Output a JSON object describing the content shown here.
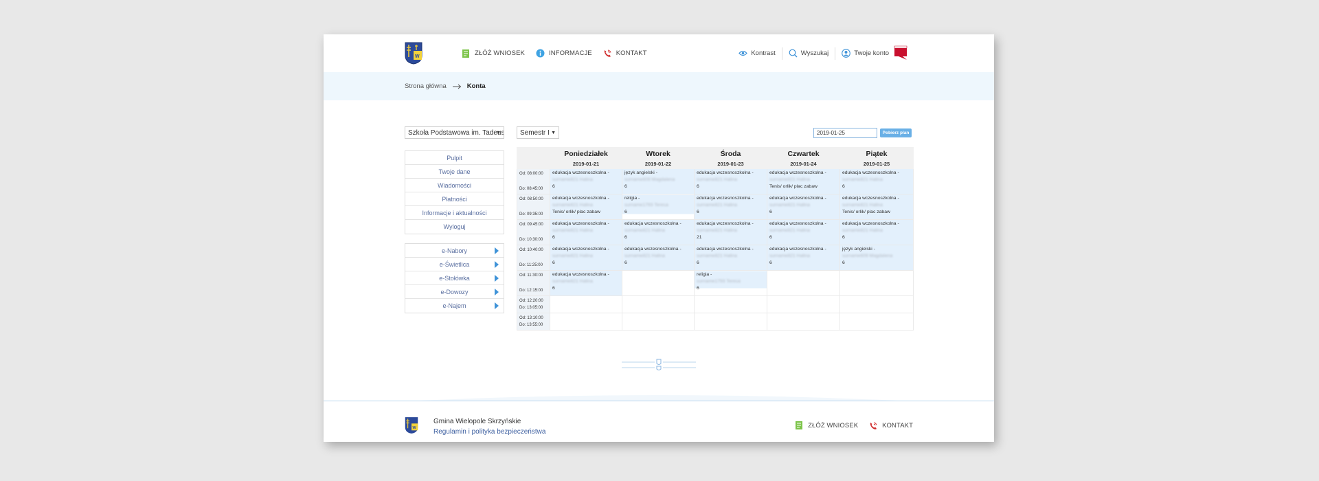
{
  "header": {
    "nav": [
      {
        "label": "ZŁÓŻ WNIOSEK",
        "icon": "document-plus-icon"
      },
      {
        "label": "INFORMACJE",
        "icon": "info-icon"
      },
      {
        "label": "KONTAKT",
        "icon": "phone-icon"
      }
    ],
    "right": [
      {
        "label": "Kontrast",
        "icon": "eye-icon"
      },
      {
        "label": "Wyszukaj",
        "icon": "search-icon"
      },
      {
        "label": "Twoje konto",
        "icon": "user-icon"
      }
    ],
    "bip_label": "bip"
  },
  "breadcrumb": {
    "home": "Strona główna",
    "current": "Konta"
  },
  "school_select": "Szkoła Podstawowa im. Tadeusza",
  "semester_select": "Semestr I",
  "date_value": "2019-01-25",
  "fetch_button": "Pobierz plan",
  "menu": [
    "Pulpit",
    "Twoje dane",
    "Wiadomości",
    "Płatności",
    "Informacje i aktualności",
    "Wyloguj"
  ],
  "modules": [
    "e-Nabory",
    "e-Świetlica",
    "e-Stołówka",
    "e-Dowozy",
    "e-Najem"
  ],
  "timetable": {
    "days": [
      {
        "name": "Poniedziałek",
        "date": "2019-01-21"
      },
      {
        "name": "Wtorek",
        "date": "2019-01-22"
      },
      {
        "name": "Środa",
        "date": "2019-01-23"
      },
      {
        "name": "Czwartek",
        "date": "2019-01-24"
      },
      {
        "name": "Piątek",
        "date": "2019-01-25"
      }
    ],
    "slots": [
      {
        "from": "Od: 08:00:00",
        "to": "Do: 08:45:00"
      },
      {
        "from": "Od: 08:50:00",
        "to": "Do: 09:35:00"
      },
      {
        "from": "Od: 09:45:00",
        "to": "Do: 10:30:00"
      },
      {
        "from": "Od: 10:40:00",
        "to": "Do: 11:25:00"
      },
      {
        "from": "Od: 11:30:00",
        "to": "Do: 12:15:00"
      },
      {
        "from": "Od: 12:20:00",
        "to": "Do: 13:05:00"
      },
      {
        "from": "Od: 13:10:00",
        "to": "Do: 13:55:00"
      }
    ],
    "cells": [
      [
        {
          "subject": "edukacja wczesnoszkolna -",
          "teacher": "surname821 Halina",
          "room": "6"
        },
        {
          "subject": "język angielski -",
          "teacher": "surname609 Magdalena",
          "room": "6"
        },
        {
          "subject": "edukacja wczesnoszkolna -",
          "teacher": "surname821 Halina",
          "room": "6"
        },
        {
          "subject": "edukacja wczesnoszkolna -",
          "teacher": "surname821 Halina",
          "room": "Tenis/ orlik/ plac zabaw"
        },
        {
          "subject": "edukacja wczesnoszkolna -",
          "teacher": "surname821 Halina",
          "room": "6"
        }
      ],
      [
        {
          "subject": "edukacja wczesnoszkolna -",
          "teacher": "surname821 Halina",
          "room": "Tenis/ orlik/ plac zabaw"
        },
        {
          "subject": "religia -",
          "teacher": "surname1793 Teresa",
          "room": "6"
        },
        {
          "subject": "edukacja wczesnoszkolna -",
          "teacher": "surname821 Halina",
          "room": "6"
        },
        {
          "subject": "edukacja wczesnoszkolna -",
          "teacher": "surname821 Halina",
          "room": "6"
        },
        {
          "subject": "edukacja wczesnoszkolna -",
          "teacher": "surname821 Halina",
          "room": "Tenis/ orlik/ plac zabaw"
        }
      ],
      [
        {
          "subject": "edukacja wczesnoszkolna -",
          "teacher": "surname821 Halina",
          "room": "6"
        },
        {
          "subject": "edukacja wczesnoszkolna -",
          "teacher": "surname821 Halina",
          "room": "6"
        },
        {
          "subject": "edukacja wczesnoszkolna -",
          "teacher": "surname821 Halina",
          "room": "21"
        },
        {
          "subject": "edukacja wczesnoszkolna -",
          "teacher": "surname821 Halina",
          "room": "6"
        },
        {
          "subject": "edukacja wczesnoszkolna -",
          "teacher": "surname821 Halina",
          "room": "6"
        }
      ],
      [
        {
          "subject": "edukacja wczesnoszkolna -",
          "teacher": "surname821 Halina",
          "room": "6"
        },
        {
          "subject": "edukacja wczesnoszkolna -",
          "teacher": "surname821 Halina",
          "room": "6"
        },
        {
          "subject": "edukacja wczesnoszkolna -",
          "teacher": "surname821 Halina",
          "room": "6"
        },
        {
          "subject": "edukacja wczesnoszkolna -",
          "teacher": "surname821 Halina",
          "room": "6"
        },
        {
          "subject": "język angielski -",
          "teacher": "surname609 Magdalena",
          "room": "6"
        }
      ],
      [
        {
          "subject": "edukacja wczesnoszkolna -",
          "teacher": "surname821 Halina",
          "room": "6"
        },
        null,
        {
          "subject": "religia -",
          "teacher": "surname1793 Teresa",
          "room": "6"
        },
        null,
        null
      ],
      [
        null,
        null,
        null,
        null,
        null
      ],
      [
        null,
        null,
        null,
        null,
        null
      ]
    ]
  },
  "footer": {
    "name": "Gmina Wielopole Skrzyńskie",
    "policy": "Regulamin i polityka bezpieczeństwa",
    "nav": [
      {
        "label": "ZŁÓŻ WNIOSEK",
        "icon": "document-plus-icon"
      },
      {
        "label": "KONTAKT",
        "icon": "phone-icon"
      }
    ]
  }
}
